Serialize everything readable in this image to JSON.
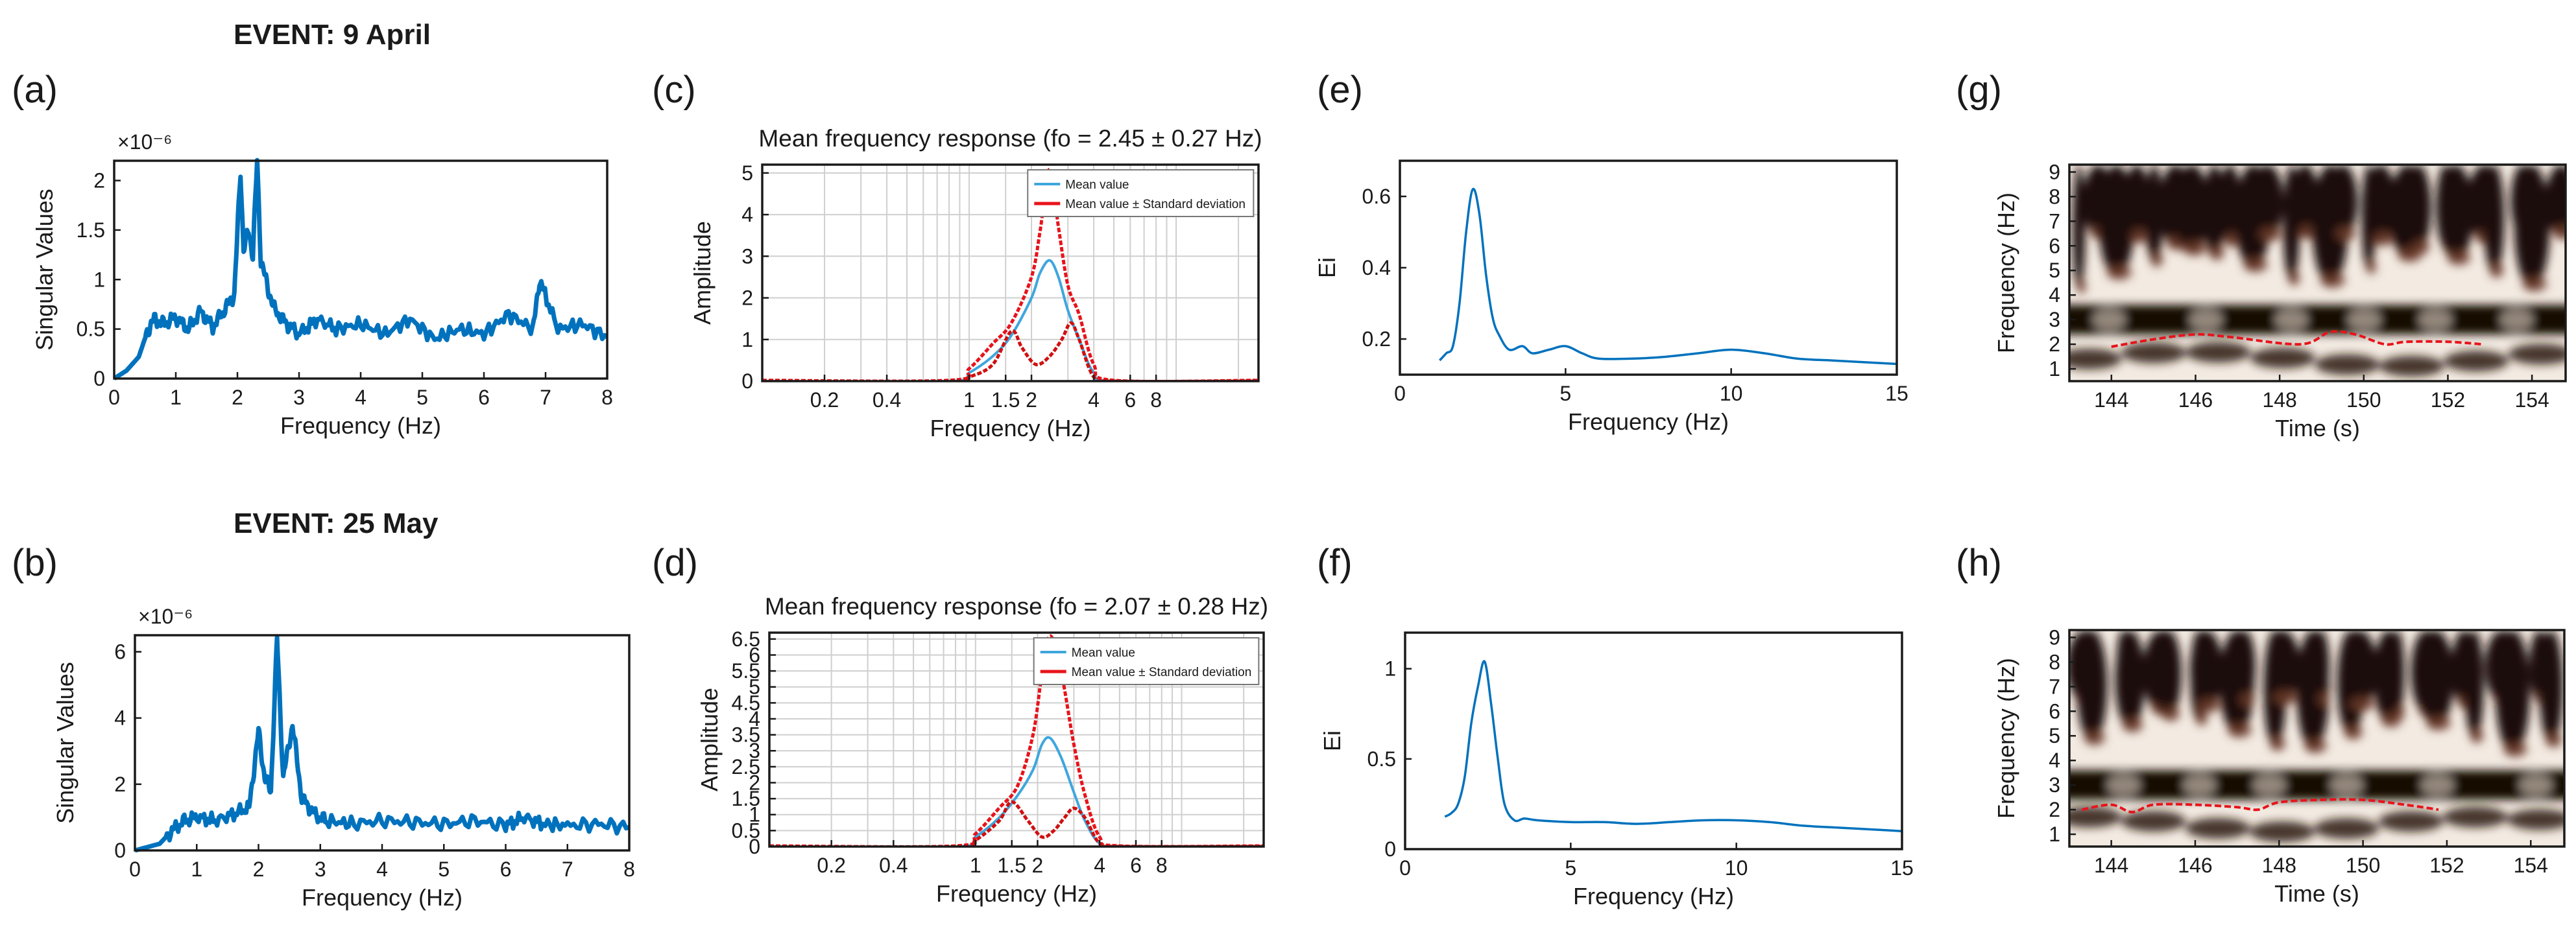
{
  "figure": {
    "events": [
      "EVENT: 9 April",
      "EVENT: 25 May"
    ],
    "panel_letters": [
      "(a)",
      "(b)",
      "(c)",
      "(d)",
      "(e)",
      "(f)",
      "(g)",
      "(h)"
    ]
  },
  "colors": {
    "blue": "#0072bd",
    "light_blue": "#3fa6dd",
    "red": "#e8131b",
    "dark_red": "#d01010",
    "axis": "#1a1a1a"
  },
  "chart_data": [
    {
      "id": "a",
      "type": "line",
      "title": "",
      "xlabel": "Frequency (Hz)",
      "ylabel": "Singular Values",
      "exponent": "×10⁻⁶",
      "xlim": [
        0,
        8
      ],
      "ylim": [
        0,
        2.2
      ],
      "xticks": [
        0,
        1,
        2,
        3,
        4,
        5,
        6,
        7,
        8
      ],
      "yticks": [
        0,
        0.5,
        1,
        1.5,
        2
      ],
      "series": [
        {
          "name": "Singular values",
          "color": "#0072bd",
          "x": [
            0,
            0.2,
            0.4,
            0.55,
            0.65,
            0.8,
            1.0,
            1.2,
            1.4,
            1.6,
            1.8,
            1.95,
            2.05,
            2.1,
            2.18,
            2.25,
            2.32,
            2.38,
            2.5,
            2.6,
            2.8,
            3.0,
            3.3,
            3.6,
            4.0,
            4.4,
            4.8,
            5.2,
            5.6,
            6.0,
            6.4,
            6.8,
            6.9,
            7.2,
            7.6,
            8.0
          ],
          "y": [
            0,
            0.08,
            0.22,
            0.5,
            0.6,
            0.55,
            0.62,
            0.5,
            0.68,
            0.52,
            0.7,
            0.85,
            2.1,
            1.3,
            1.5,
            1.25,
            2.2,
            1.2,
            0.9,
            0.7,
            0.55,
            0.45,
            0.6,
            0.5,
            0.55,
            0.45,
            0.6,
            0.4,
            0.5,
            0.45,
            0.65,
            0.5,
            1.0,
            0.5,
            0.55,
            0.42
          ]
        }
      ]
    },
    {
      "id": "b",
      "type": "line",
      "title": "",
      "xlabel": "Frequency (Hz)",
      "ylabel": "Singular Values",
      "exponent": "×10⁻⁶",
      "xlim": [
        0,
        8
      ],
      "ylim": [
        0,
        6.5
      ],
      "xticks": [
        0,
        1,
        2,
        3,
        4,
        5,
        6,
        7,
        8
      ],
      "yticks": [
        0,
        2,
        4,
        6
      ],
      "series": [
        {
          "name": "Singular values",
          "color": "#0072bd",
          "x": [
            0,
            0.2,
            0.4,
            0.6,
            0.8,
            1.0,
            1.3,
            1.6,
            1.85,
            2.0,
            2.1,
            2.2,
            2.3,
            2.4,
            2.55,
            2.7,
            2.9,
            3.1,
            3.5,
            4.0,
            4.5,
            5.0,
            5.5,
            6.0,
            6.3,
            6.6,
            7.0,
            7.5,
            8.0
          ],
          "y": [
            0,
            0.1,
            0.2,
            0.6,
            0.9,
            1.0,
            0.9,
            1.1,
            1.3,
            3.6,
            2.2,
            1.8,
            6.4,
            2.2,
            3.8,
            1.6,
            1.1,
            0.9,
            0.8,
            0.9,
            0.85,
            0.8,
            0.9,
            0.75,
            1.0,
            0.8,
            0.75,
            0.8,
            0.7
          ]
        }
      ]
    },
    {
      "id": "c",
      "type": "line",
      "title": "Mean frequency response (fo = 2.45 ± 0.27 Hz)",
      "xlabel": "Frequency (Hz)",
      "ylabel": "Amplitude",
      "xscale": "log",
      "xlim": [
        0.1,
        25
      ],
      "ylim": [
        0,
        5.2
      ],
      "xticks": [
        0.2,
        0.4,
        1,
        1.5,
        2,
        4,
        6,
        8
      ],
      "xtick_labels": [
        "0.2",
        "0.4",
        "1",
        "1.5",
        "2",
        "4",
        "6",
        "8"
      ],
      "yticks": [
        0,
        1,
        2,
        3,
        4,
        5
      ],
      "legend": [
        "Mean value",
        "Mean value ± Standard deviation"
      ],
      "series": [
        {
          "name": "Mean value",
          "color": "#3fa6dd",
          "x": [
            0.1,
            0.8,
            1.0,
            1.3,
            1.6,
            2.0,
            2.2,
            2.45,
            2.7,
            3.0,
            3.4,
            4.0,
            5.0,
            25
          ],
          "y": [
            0,
            0,
            0.2,
            0.6,
            1.1,
            2.0,
            2.6,
            2.9,
            2.5,
            1.7,
            1.0,
            0.2,
            0,
            0
          ]
        },
        {
          "name": "Mean value + Standard deviation",
          "color": "#e8131b",
          "x": [
            0.1,
            0.8,
            1.0,
            1.3,
            1.6,
            2.0,
            2.2,
            2.45,
            2.7,
            3.0,
            3.4,
            4.0,
            5.0,
            25
          ],
          "y": [
            0.02,
            0.02,
            0.3,
            0.9,
            1.4,
            2.5,
            3.6,
            5.1,
            3.7,
            2.3,
            1.6,
            0.4,
            0.02,
            0.02
          ]
        },
        {
          "name": "Mean value - Standard deviation",
          "color": "#d01010",
          "x": [
            0.1,
            0.8,
            1.0,
            1.3,
            1.6,
            1.8,
            2.1,
            2.45,
            2.8,
            3.1,
            3.4,
            4.0,
            5.0,
            25
          ],
          "y": [
            0,
            0,
            0.1,
            0.4,
            1.2,
            0.8,
            0.4,
            0.6,
            1.0,
            1.4,
            1.0,
            0.1,
            0,
            0
          ]
        }
      ]
    },
    {
      "id": "d",
      "type": "line",
      "title": "Mean frequency response (fo = 2.07 ± 0.28 Hz)",
      "xlabel": "Frequency (Hz)",
      "ylabel": "Amplitude",
      "xscale": "log",
      "xlim": [
        0.1,
        25
      ],
      "ylim": [
        0,
        6.7
      ],
      "xticks": [
        0.2,
        0.4,
        1,
        1.5,
        2,
        4,
        6,
        8
      ],
      "xtick_labels": [
        "0.2",
        "0.4",
        "1",
        "1.5",
        "2",
        "4",
        "6",
        "8"
      ],
      "yticks": [
        0,
        0.5,
        1,
        1.5,
        2,
        2.5,
        3,
        3.5,
        4,
        4.5,
        5,
        5.5,
        6,
        6.5
      ],
      "legend": [
        "Mean value",
        "Mean value ± Standard deviation"
      ],
      "series": [
        {
          "name": "Mean value",
          "color": "#3fa6dd",
          "x": [
            0.1,
            0.8,
            1.0,
            1.3,
            1.6,
            1.9,
            2.1,
            2.3,
            2.6,
            3.0,
            3.4,
            4.0,
            5.0,
            25
          ],
          "y": [
            0,
            0,
            0.3,
            0.9,
            1.6,
            2.4,
            3.2,
            3.4,
            2.8,
            1.7,
            0.8,
            0.1,
            0,
            0
          ]
        },
        {
          "name": "Mean value + Standard deviation",
          "color": "#e8131b",
          "x": [
            0.1,
            0.8,
            1.0,
            1.3,
            1.6,
            1.9,
            2.1,
            2.3,
            2.6,
            3.0,
            3.4,
            4.0,
            5.0,
            25
          ],
          "y": [
            0.02,
            0.02,
            0.4,
            1.2,
            1.9,
            3.5,
            5.4,
            6.6,
            5.5,
            3.2,
            1.6,
            0.3,
            0.02,
            0.02
          ]
        },
        {
          "name": "Mean value - Standard deviation",
          "color": "#d01010",
          "x": [
            0.1,
            0.8,
            1.0,
            1.3,
            1.5,
            1.8,
            2.1,
            2.4,
            2.7,
            3.0,
            3.4,
            4.0,
            5.0,
            25
          ],
          "y": [
            0,
            0,
            0.2,
            0.8,
            1.4,
            0.8,
            0.3,
            0.5,
            0.9,
            1.2,
            0.9,
            0.1,
            0,
            0
          ]
        }
      ]
    },
    {
      "id": "e",
      "type": "line",
      "title": "",
      "xlabel": "Frequency (Hz)",
      "ylabel": "Ei",
      "xlim": [
        0,
        15
      ],
      "ylim": [
        0.1,
        0.7
      ],
      "xticks": [
        0,
        5,
        10,
        15
      ],
      "yticks": [
        0.2,
        0.4,
        0.6
      ],
      "series": [
        {
          "name": "Ei",
          "color": "#0072bd",
          "x": [
            1.2,
            1.4,
            1.6,
            1.8,
            2.0,
            2.2,
            2.4,
            2.6,
            2.8,
            3.0,
            3.3,
            3.7,
            4.0,
            4.5,
            5.0,
            5.5,
            6.0,
            7.0,
            8.0,
            9.0,
            10.0,
            11.0,
            12.0,
            13.0,
            14.0,
            15.0
          ],
          "y": [
            0.14,
            0.16,
            0.18,
            0.3,
            0.5,
            0.62,
            0.55,
            0.38,
            0.26,
            0.21,
            0.17,
            0.18,
            0.16,
            0.17,
            0.18,
            0.16,
            0.145,
            0.145,
            0.15,
            0.16,
            0.17,
            0.16,
            0.145,
            0.14,
            0.135,
            0.13
          ]
        }
      ]
    },
    {
      "id": "f",
      "type": "line",
      "title": "",
      "xlabel": "Frequency (Hz)",
      "ylabel": "Ei",
      "xlim": [
        0,
        15
      ],
      "ylim": [
        0,
        1.2
      ],
      "xticks": [
        0,
        5,
        10,
        15
      ],
      "yticks": [
        0,
        0.5,
        1
      ],
      "series": [
        {
          "name": "Ei",
          "color": "#0072bd",
          "x": [
            1.2,
            1.4,
            1.6,
            1.8,
            2.0,
            2.2,
            2.4,
            2.6,
            2.8,
            3.0,
            3.3,
            3.6,
            4.0,
            5.0,
            6.0,
            7.0,
            8.0,
            9.0,
            10.0,
            11.0,
            12.0,
            13.0,
            14.0,
            15.0
          ],
          "y": [
            0.18,
            0.2,
            0.25,
            0.4,
            0.7,
            0.9,
            1.04,
            0.8,
            0.5,
            0.25,
            0.16,
            0.17,
            0.16,
            0.15,
            0.15,
            0.14,
            0.15,
            0.16,
            0.16,
            0.15,
            0.13,
            0.12,
            0.11,
            0.1
          ]
        }
      ]
    },
    {
      "id": "g",
      "type": "heatmap",
      "xlabel": "Time (s)",
      "ylabel": "Frequency (Hz)",
      "xlim": [
        143,
        154.8
      ],
      "ylim": [
        0.5,
        9.3
      ],
      "xticks": [
        144,
        146,
        148,
        150,
        152,
        154
      ],
      "yticks": [
        1,
        2,
        3,
        4,
        5,
        6,
        7,
        8,
        9
      ],
      "ridge": {
        "t": [
          144,
          145,
          146,
          146.8,
          148.5,
          149.2,
          149.8,
          150.5,
          151,
          152,
          152.8
        ],
        "f": [
          1.9,
          2.2,
          2.4,
          2.3,
          2.0,
          2.5,
          2.4,
          2.0,
          2.1,
          2.1,
          2.0
        ]
      }
    },
    {
      "id": "h",
      "type": "heatmap",
      "xlabel": "Time (s)",
      "ylabel": "Frequency (Hz)",
      "xlim": [
        143,
        154.8
      ],
      "ylim": [
        0.5,
        9.3
      ],
      "xticks": [
        144,
        146,
        148,
        150,
        152,
        154
      ],
      "yticks": [
        1,
        2,
        3,
        4,
        5,
        6,
        7,
        8,
        9
      ],
      "ridge": {
        "t": [
          143.3,
          144,
          144.5,
          145,
          146,
          147,
          147.5,
          148,
          149,
          150,
          151,
          151.8
        ],
        "f": [
          2.0,
          2.2,
          1.9,
          2.2,
          2.2,
          2.1,
          2.0,
          2.3,
          2.4,
          2.4,
          2.2,
          2.0
        ]
      }
    }
  ]
}
